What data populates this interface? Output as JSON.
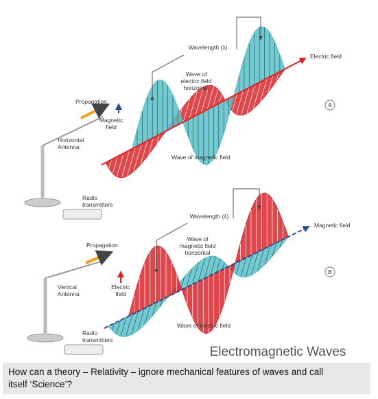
{
  "panel_a": {
    "letter": "A",
    "wavelength": "Wavelength (λ)",
    "axis_label": "Electric field",
    "upper_wave": [
      "Wave of",
      "electric field",
      "horizontal"
    ],
    "propagation": "Propagation",
    "side_field": [
      "Magnetic",
      "field"
    ],
    "antenna": [
      "Horizontal",
      "Antenna"
    ],
    "lower_wave": "Wave of magnetic field",
    "transmitter": [
      "Radio",
      "transmitters"
    ]
  },
  "panel_b": {
    "letter": "B",
    "wavelength": "Wavelength (λ)",
    "axis_label": "Magnetic field",
    "upper_wave": [
      "Wave of",
      "magnetic field",
      "horizontal"
    ],
    "propagation": "Propagation",
    "side_field": [
      "Electric",
      "field"
    ],
    "antenna": [
      "Vertical",
      "Antenna"
    ],
    "lower_wave": "Wave of electric field",
    "transmitter": [
      "Radio",
      "transmitters"
    ]
  },
  "title": "Electromagnetic Waves",
  "caption": [
    "How can a theory – Relativity – ignore mechanical features of waves and call",
    "itself ‘Science’?"
  ]
}
